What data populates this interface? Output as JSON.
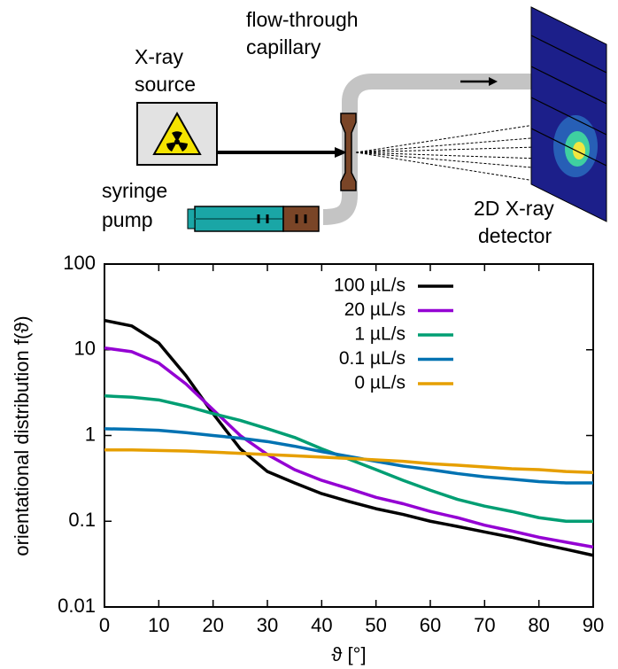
{
  "diagram": {
    "source_label": [
      "X-ray",
      "source"
    ],
    "capillary_label": [
      "flow-through",
      "capillary"
    ],
    "pump_label": [
      "syringe",
      "pump"
    ],
    "detector_label": [
      "2D X-ray",
      "detector"
    ]
  },
  "chart_data": {
    "type": "line",
    "y_label": "orientational distribution f(ϑ)",
    "x_label": "ϑ [°]",
    "x": [
      0,
      5,
      10,
      15,
      20,
      25,
      30,
      35,
      40,
      45,
      50,
      55,
      60,
      65,
      70,
      75,
      80,
      85,
      90
    ],
    "series": [
      {
        "name": "100 µL/s",
        "color": "#000000",
        "values": [
          22,
          19,
          12,
          5,
          1.8,
          0.7,
          0.38,
          0.28,
          0.21,
          0.17,
          0.14,
          0.12,
          0.1,
          0.087,
          0.075,
          0.065,
          0.055,
          0.047,
          0.04
        ]
      },
      {
        "name": "20 µL/s",
        "color": "#9400d3",
        "values": [
          10.5,
          9.5,
          7,
          4,
          2,
          1.0,
          0.6,
          0.4,
          0.3,
          0.24,
          0.19,
          0.16,
          0.13,
          0.11,
          0.09,
          0.077,
          0.065,
          0.057,
          0.05
        ]
      },
      {
        "name": "1 µL/s",
        "color": "#009e73",
        "values": [
          2.9,
          2.8,
          2.6,
          2.2,
          1.8,
          1.5,
          1.2,
          0.95,
          0.7,
          0.53,
          0.4,
          0.3,
          0.23,
          0.18,
          0.15,
          0.13,
          0.11,
          0.1,
          0.1
        ]
      },
      {
        "name": "0.1 µL/s",
        "color": "#0072b2",
        "values": [
          1.2,
          1.18,
          1.15,
          1.08,
          1.0,
          0.93,
          0.85,
          0.75,
          0.65,
          0.57,
          0.5,
          0.44,
          0.4,
          0.36,
          0.33,
          0.31,
          0.29,
          0.28,
          0.28
        ]
      },
      {
        "name": "0 µL/s",
        "color": "#e69f00",
        "values": [
          0.68,
          0.68,
          0.67,
          0.66,
          0.64,
          0.62,
          0.6,
          0.58,
          0.56,
          0.54,
          0.52,
          0.5,
          0.47,
          0.45,
          0.43,
          0.41,
          0.4,
          0.38,
          0.37
        ]
      }
    ],
    "xlim": [
      0,
      90
    ],
    "xticks": [
      0,
      10,
      20,
      30,
      40,
      50,
      60,
      70,
      80,
      90
    ],
    "ylim": [
      0.01,
      100
    ],
    "yticks": [
      0.01,
      0.1,
      1,
      10,
      100
    ],
    "log_y": true,
    "legend": "top-right"
  }
}
